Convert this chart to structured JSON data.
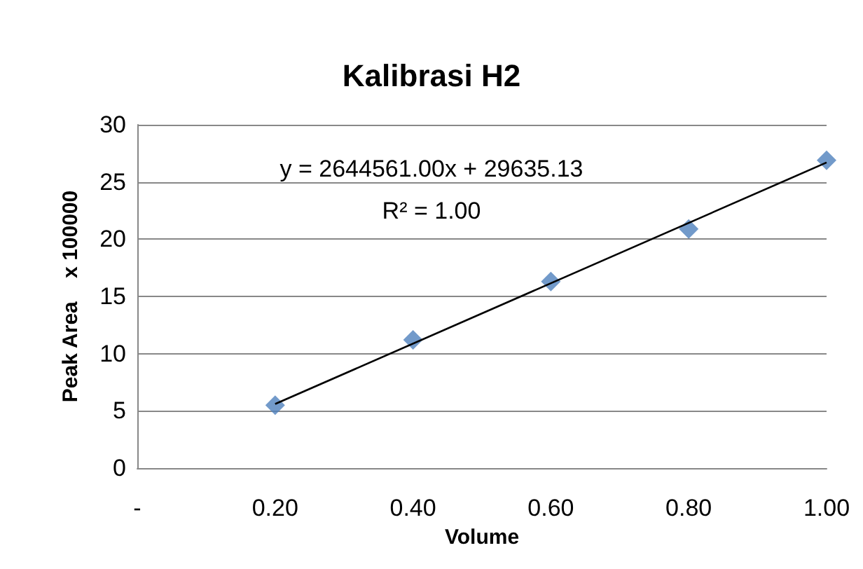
{
  "chart_data": {
    "type": "scatter",
    "title": "Kalibrasi H2",
    "xlabel": "Volume",
    "ylabel": "Peak Area    x 100000",
    "marker": "diamond",
    "grid": "y",
    "xlim": [
      0,
      1
    ],
    "xticks": [
      {
        "value": 0,
        "label": "-"
      },
      {
        "value": 0.2,
        "label": "0.20"
      },
      {
        "value": 0.4,
        "label": "0.40"
      },
      {
        "value": 0.6,
        "label": "0.60"
      },
      {
        "value": 0.8,
        "label": "0.80"
      },
      {
        "value": 1,
        "label": "1.00"
      }
    ],
    "ylim": [
      0,
      30
    ],
    "yticks": [
      0,
      5,
      10,
      15,
      20,
      25,
      30
    ],
    "annotations": [
      "y = 2644561.00x + 29635.13",
      "R² = 1.00"
    ],
    "series": [
      {
        "color": "#4f81bd",
        "x": [
          0.2,
          0.4,
          0.6,
          0.8,
          1.0
        ],
        "values": [
          5.5,
          11.2,
          16.3,
          20.9,
          26.9
        ]
      },
      {
        "type": "line",
        "color": "#000000",
        "marker": "none",
        "x": [
          0.2,
          1.0
        ],
        "values": [
          5.6,
          26.7
        ]
      }
    ]
  }
}
